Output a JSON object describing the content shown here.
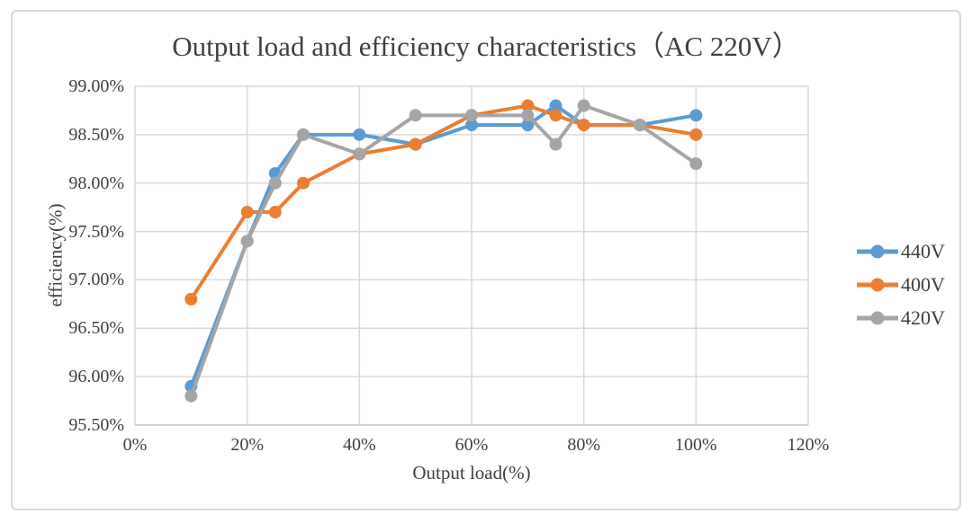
{
  "title": "Output load and efficiency characteristics（AC 220V）",
  "chart_data": {
    "type": "line",
    "title": "Output load and efficiency characteristics（AC 220V）",
    "xlabel": "Output load(%)",
    "ylabel": "efficiency(%)",
    "x": [
      10,
      20,
      25,
      30,
      40,
      50,
      60,
      70,
      75,
      80,
      90,
      100
    ],
    "series": [
      {
        "name": "440V",
        "color": "#5b9bd5",
        "values": [
          95.9,
          97.4,
          98.1,
          98.5,
          98.5,
          98.4,
          98.6,
          98.6,
          98.8,
          98.6,
          98.6,
          98.7
        ]
      },
      {
        "name": "400V",
        "color": "#ed7d31",
        "values": [
          96.8,
          97.7,
          97.7,
          98.0,
          98.3,
          98.4,
          98.7,
          98.8,
          98.7,
          98.6,
          98.6,
          98.5
        ]
      },
      {
        "name": "420V",
        "color": "#a5a5a5",
        "values": [
          95.8,
          97.4,
          98.0,
          98.5,
          98.3,
          98.7,
          98.7,
          98.7,
          98.4,
          98.8,
          98.6,
          98.2
        ]
      }
    ],
    "x_ticks": [
      "0%",
      "20%",
      "40%",
      "60%",
      "80%",
      "100%",
      "120%"
    ],
    "x_tick_values": [
      0,
      20,
      40,
      60,
      80,
      100,
      120
    ],
    "y_ticks": [
      "99.00%",
      "98.50%",
      "98.00%",
      "97.50%",
      "97.00%",
      "96.50%",
      "96.00%",
      "95.50%"
    ],
    "y_tick_values": [
      99.0,
      98.5,
      98.0,
      97.5,
      97.0,
      96.5,
      96.0,
      95.5
    ],
    "xlim": [
      0,
      120
    ],
    "ylim": [
      95.5,
      99.0
    ],
    "grid": true,
    "legend_position": "right",
    "legend": [
      "440V",
      "400V",
      "420V"
    ]
  },
  "colors": {
    "gridline": "#d9d9d9",
    "axis_line": "#bfbfbf",
    "frame_border": "#d9d9d9",
    "text": "#404040",
    "series_440V": "#5b9bd5",
    "series_400V": "#ed7d31",
    "series_420V": "#a5a5a5"
  }
}
